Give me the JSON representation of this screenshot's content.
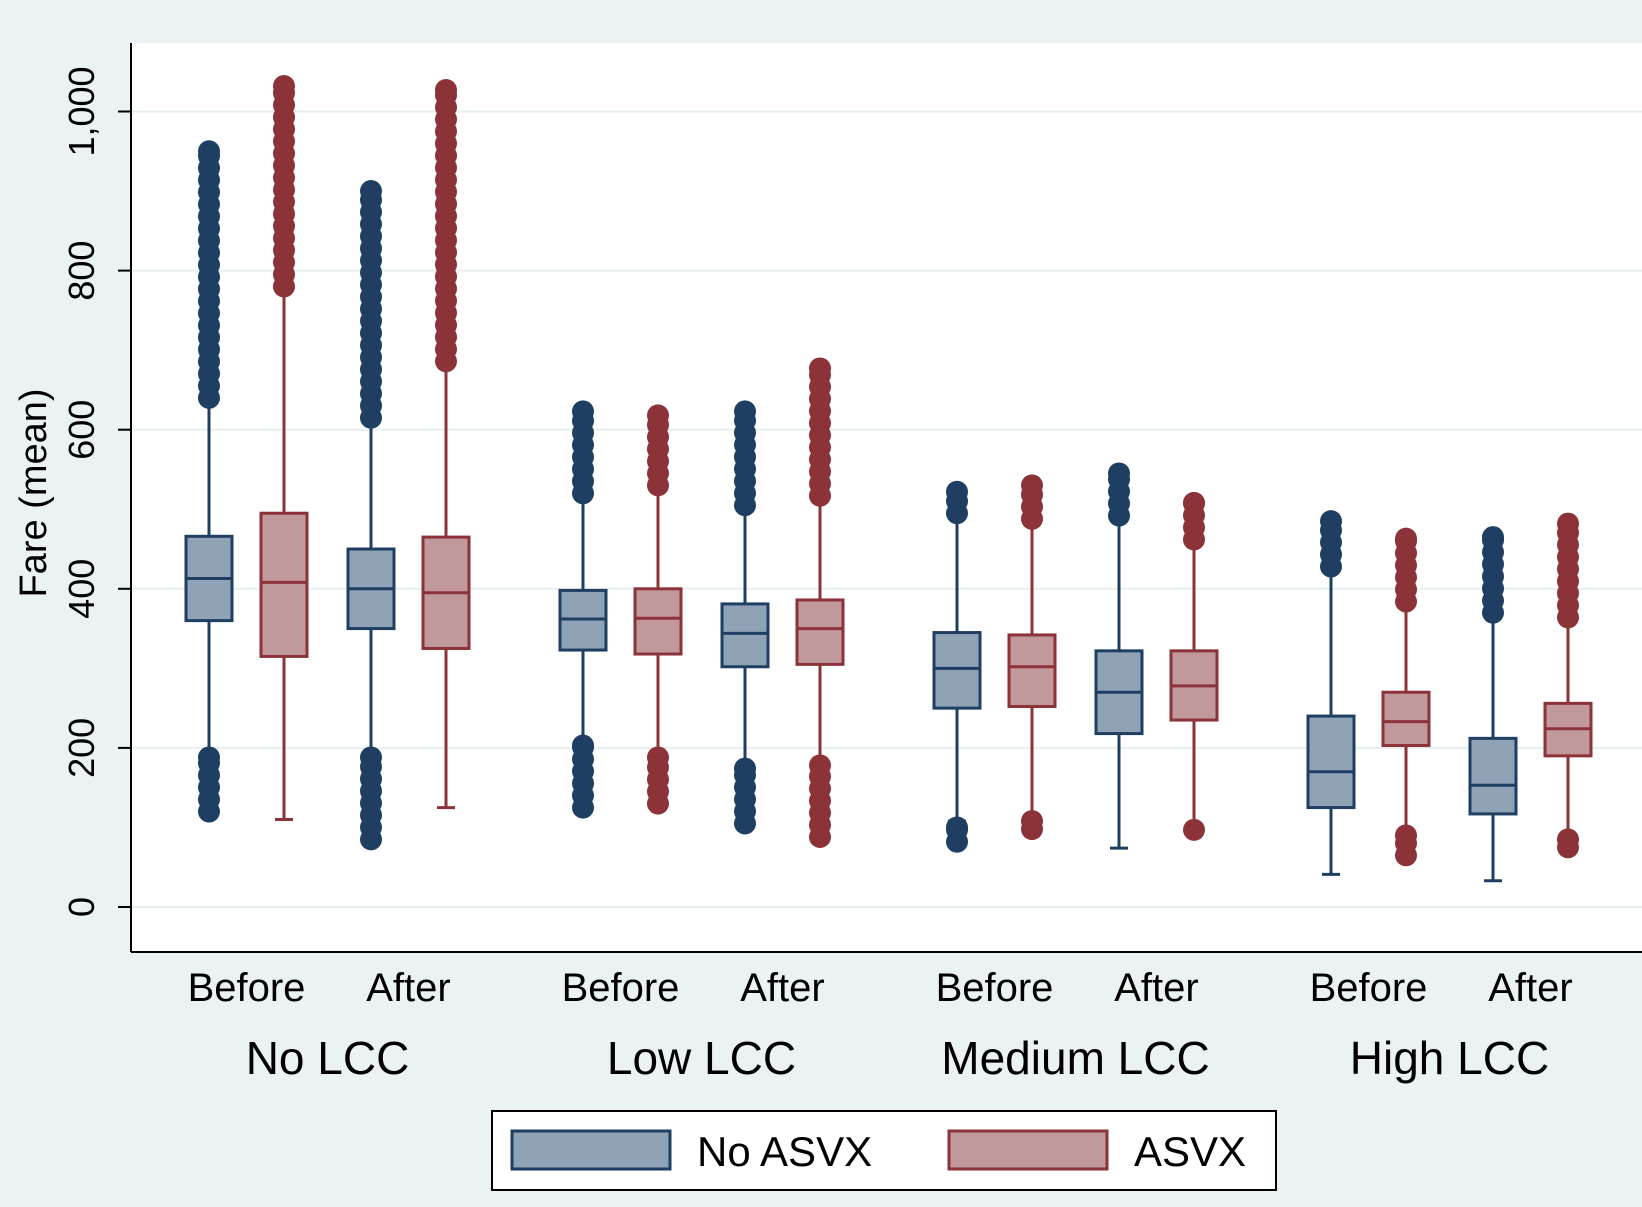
{
  "chart_data": {
    "type": "box",
    "title": "",
    "xlabel": "",
    "ylabel": "Fare (mean)",
    "ylim": [
      0,
      1000
    ],
    "yticks": [
      0,
      200,
      400,
      600,
      800,
      1000
    ],
    "ytick_labels": [
      "0",
      "200",
      "400",
      "600",
      "800",
      "1,000"
    ],
    "grid": true,
    "legend_position": "bottom",
    "colors": {
      "background": "#eaf2f3",
      "plot": "#ffffff",
      "gridline": "#e8eff1",
      "No ASVX_fill": "#8fa2b6",
      "No ASVX_stroke": "#1f3f62",
      "ASVX_fill": "#c1999c",
      "ASVX_stroke": "#8b3339"
    },
    "series": [
      {
        "name": "No ASVX"
      },
      {
        "name": "ASVX"
      }
    ],
    "groups": [
      {
        "label": "No LCC",
        "periods": [
          {
            "label": "Before",
            "boxes": {
              "No ASVX": {
                "whisker_low": 190,
                "q1": 360,
                "median": 413,
                "q3": 466,
                "whisker_high": 636,
                "outliers_low": [
                  120,
                  188
                ],
                "outliers_high": [
                  640,
                  950
                ]
              },
              "ASVX": {
                "whisker_low": 110,
                "q1": 315,
                "median": 408,
                "q3": 495,
                "whisker_high": 775,
                "outliers_low": [],
                "outliers_high": [
                  780,
                  1032
                ]
              }
            }
          },
          {
            "label": "After",
            "boxes": {
              "No ASVX": {
                "whisker_low": 190,
                "q1": 350,
                "median": 400,
                "q3": 450,
                "whisker_high": 610,
                "outliers_low": [
                  85,
                  188
                ],
                "outliers_high": [
                  615,
                  900
                ]
              },
              "ASVX": {
                "whisker_low": 125,
                "q1": 325,
                "median": 395,
                "q3": 465,
                "whisker_high": 682,
                "outliers_low": [],
                "outliers_high": [
                  686,
                  1027
                ]
              }
            }
          }
        ]
      },
      {
        "label": "Low LCC",
        "periods": [
          {
            "label": "Before",
            "boxes": {
              "No ASVX": {
                "whisker_low": 205,
                "q1": 323,
                "median": 362,
                "q3": 398,
                "whisker_high": 517,
                "outliers_low": [
                  125,
                  203
                ],
                "outliers_high": [
                  520,
                  623
                ]
              },
              "ASVX": {
                "whisker_low": 190,
                "q1": 318,
                "median": 363,
                "q3": 400,
                "whisker_high": 527,
                "outliers_low": [
                  130,
                  188
                ],
                "outliers_high": [
                  530,
                  618
                ]
              }
            }
          },
          {
            "label": "After",
            "boxes": {
              "No ASVX": {
                "whisker_low": 176,
                "q1": 302,
                "median": 344,
                "q3": 381,
                "whisker_high": 502,
                "outliers_low": [
                  105,
                  174
                ],
                "outliers_high": [
                  505,
                  623
                ]
              },
              "ASVX": {
                "whisker_low": 180,
                "q1": 305,
                "median": 350,
                "q3": 386,
                "whisker_high": 514,
                "outliers_low": [
                  88,
                  178
                ],
                "outliers_high": [
                  517,
                  677
                ]
              }
            }
          }
        ]
      },
      {
        "label": "Medium LCC",
        "periods": [
          {
            "label": "Before",
            "boxes": {
              "No ASVX": {
                "whisker_low": 108,
                "q1": 250,
                "median": 300,
                "q3": 345,
                "whisker_high": 492,
                "outliers_low": [
                  82,
                  100
                ],
                "outliers_high": [
                  495,
                  522
                ]
              },
              "ASVX": {
                "whisker_low": 112,
                "q1": 252,
                "median": 302,
                "q3": 342,
                "whisker_high": 484,
                "outliers_low": [
                  98,
                  108
                ],
                "outliers_high": [
                  488,
                  530
                ]
              }
            }
          },
          {
            "label": "After",
            "boxes": {
              "No ASVX": {
                "whisker_low": 74,
                "q1": 218,
                "median": 270,
                "q3": 322,
                "whisker_high": 490,
                "outliers_low": [],
                "outliers_high": [
                  492,
                  545
                ]
              },
              "ASVX": {
                "whisker_low": 102,
                "q1": 235,
                "median": 278,
                "q3": 322,
                "whisker_high": 456,
                "outliers_low": [
                  97
                ],
                "outliers_high": [
                  462,
                  508
                ]
              }
            }
          }
        ]
      },
      {
        "label": "High LCC",
        "periods": [
          {
            "label": "Before",
            "boxes": {
              "No ASVX": {
                "whisker_low": 41,
                "q1": 125,
                "median": 170,
                "q3": 240,
                "whisker_high": 422,
                "outliers_low": [],
                "outliers_high": [
                  428,
                  485
                ]
              },
              "ASVX": {
                "whisker_low": 92,
                "q1": 203,
                "median": 233,
                "q3": 270,
                "whisker_high": 380,
                "outliers_low": [
                  65,
                  90
                ],
                "outliers_high": [
                  384,
                  463
                ]
              }
            }
          },
          {
            "label": "After",
            "boxes": {
              "No ASVX": {
                "whisker_low": 33,
                "q1": 117,
                "median": 153,
                "q3": 212,
                "whisker_high": 366,
                "outliers_low": [],
                "outliers_high": [
                  370,
                  465
                ]
              },
              "ASVX": {
                "whisker_low": 87,
                "q1": 190,
                "median": 224,
                "q3": 256,
                "whisker_high": 360,
                "outliers_low": [
                  75,
                  85
                ],
                "outliers_high": [
                  364,
                  482
                ]
              }
            }
          }
        ]
      }
    ]
  }
}
